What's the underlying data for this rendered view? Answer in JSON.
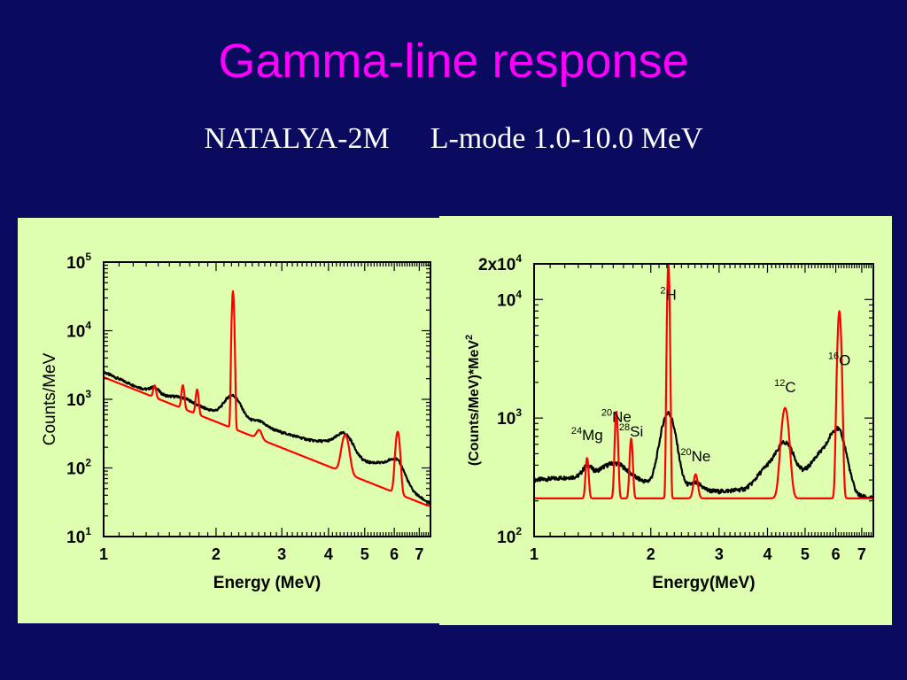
{
  "title": "Gamma-line response",
  "subtitle": {
    "detector": "NATALYA-2M",
    "mode": "L-mode 1.0-10.0 MeV"
  },
  "colors": {
    "background": "#0a0a5e",
    "title": "#ff00ff",
    "panel": "#dfffb0",
    "measured": "#000000",
    "simulated": "#ff0000"
  },
  "chart_data": [
    {
      "type": "line",
      "xlabel": "Energy (MeV)",
      "ylabel": "Counts/MeV",
      "x_scale": "log",
      "y_scale": "log",
      "xlim": [
        1,
        7.5
      ],
      "ylim": [
        10,
        100000
      ],
      "x_ticks": [
        "1",
        "2",
        "3",
        "4",
        "5",
        "6",
        "7"
      ],
      "x_tick_values": [
        1,
        2,
        3,
        4,
        5,
        6,
        7
      ],
      "y_ticks": [
        {
          "base": "10",
          "exp": "1",
          "value": 10
        },
        {
          "base": "10",
          "exp": "2",
          "value": 100
        },
        {
          "base": "10",
          "exp": "3",
          "value": 1000
        },
        {
          "base": "10",
          "exp": "4",
          "value": 10000
        },
        {
          "base": "10",
          "exp": "5",
          "value": 100000
        }
      ],
      "series": [
        {
          "color": "#000000",
          "baseline": [
            [
              1.0,
              2500
            ],
            [
              1.2,
              1600
            ],
            [
              1.5,
              1050
            ],
            [
              1.8,
              780
            ],
            [
              2.2,
              550
            ],
            [
              2.6,
              420
            ],
            [
              3.0,
              330
            ],
            [
              3.5,
              260
            ],
            [
              4.0,
              210
            ],
            [
              4.4,
              170
            ],
            [
              4.8,
              125
            ],
            [
              5.3,
              100
            ],
            [
              5.8,
              80
            ],
            [
              6.2,
              60
            ],
            [
              6.6,
              48
            ],
            [
              7.0,
              38
            ],
            [
              7.5,
              30
            ]
          ],
          "peaks": [
            [
              1.37,
              1.2,
              0.025
            ],
            [
              1.63,
              1.15,
              0.06
            ],
            [
              2.22,
              2.1,
              0.045
            ],
            [
              2.61,
              1.15,
              0.04
            ],
            [
              3.95,
              1.1,
              0.05
            ],
            [
              4.44,
              1.9,
              0.05
            ],
            [
              5.65,
              1.3,
              0.07
            ],
            [
              6.13,
              1.9,
              0.04
            ]
          ]
        },
        {
          "color": "#ff0000",
          "baseline": [
            [
              1.0,
              2100
            ],
            [
              7.4,
              28
            ]
          ],
          "peaks": [
            [
              1.37,
              1.5,
              0.008
            ],
            [
              1.63,
              2.2,
              0.008
            ],
            [
              1.78,
              2.3,
              0.008
            ],
            [
              2.22,
              100,
              0.006
            ],
            [
              2.61,
              1.35,
              0.015
            ],
            [
              4.44,
              3.6,
              0.02
            ],
            [
              6.13,
              8,
              0.012
            ]
          ]
        }
      ]
    },
    {
      "type": "line",
      "xlabel": "Energy(MeV)",
      "ylabel": "(Counts/MeV)*MeV",
      "ylabel_sup": "2",
      "x_scale": "log",
      "y_scale": "log",
      "xlim": [
        1,
        7.5
      ],
      "ylim": [
        100,
        20000
      ],
      "x_ticks": [
        "1",
        "2",
        "3",
        "4",
        "5",
        "6",
        "7"
      ],
      "x_tick_values": [
        1,
        2,
        3,
        4,
        5,
        6,
        7
      ],
      "y_ticks": [
        {
          "base": "10",
          "exp": "2",
          "value": 100
        },
        {
          "base": "10",
          "exp": "3",
          "value": 1000
        },
        {
          "base": "10",
          "exp": "4",
          "value": 10000
        },
        {
          "base": "2x10",
          "exp": "4",
          "value": 20000
        }
      ],
      "annotations": [
        {
          "sup": "24",
          "text": "Mg",
          "x": 1.37,
          "y": 650
        },
        {
          "sup": "20",
          "text": "Ne",
          "x": 1.63,
          "y": 930
        },
        {
          "sup": "28",
          "text": "Si",
          "x": 1.78,
          "y": 700
        },
        {
          "sup": "2",
          "text": "H",
          "x": 2.22,
          "y": 10000
        },
        {
          "sup": "20",
          "text": "Ne",
          "x": 2.61,
          "y": 430
        },
        {
          "sup": "12",
          "text": "C",
          "x": 4.44,
          "y": 1650
        },
        {
          "sup": "16",
          "text": "O",
          "x": 6.13,
          "y": 2800
        }
      ],
      "series": [
        {
          "color": "#000000",
          "baseline": [
            [
              1.0,
              300
            ],
            [
              1.3,
              320
            ],
            [
              1.5,
              350
            ],
            [
              1.8,
              310
            ],
            [
              2.0,
              280
            ],
            [
              2.4,
              250
            ],
            [
              3.0,
              240
            ],
            [
              3.5,
              250
            ],
            [
              4.0,
              300
            ],
            [
              4.4,
              310
            ],
            [
              4.8,
              300
            ],
            [
              5.3,
              330
            ],
            [
              5.8,
              330
            ],
            [
              6.3,
              260
            ],
            [
              6.8,
              220
            ],
            [
              7.5,
              210
            ]
          ],
          "peaks": [
            [
              1.37,
              1.2,
              0.025
            ],
            [
              1.63,
              1.25,
              0.06
            ],
            [
              2.22,
              4.2,
              0.04
            ],
            [
              2.61,
              1.15,
              0.035
            ],
            [
              3.95,
              1.25,
              0.05
            ],
            [
              4.44,
              2.0,
              0.05
            ],
            [
              5.65,
              1.6,
              0.07
            ],
            [
              6.13,
              2.5,
              0.04
            ]
          ]
        },
        {
          "color": "#ff0000",
          "baseline": [
            [
              1.0,
              210
            ],
            [
              7.5,
              210
            ]
          ],
          "peaks": [
            [
              1.37,
              2.2,
              0.008
            ],
            [
              1.63,
              5.4,
              0.008
            ],
            [
              1.78,
              3.2,
              0.008
            ],
            [
              2.22,
              95,
              0.006
            ],
            [
              2.61,
              1.6,
              0.012
            ],
            [
              4.44,
              5.8,
              0.02
            ],
            [
              6.13,
              38,
              0.01
            ]
          ]
        }
      ]
    }
  ]
}
